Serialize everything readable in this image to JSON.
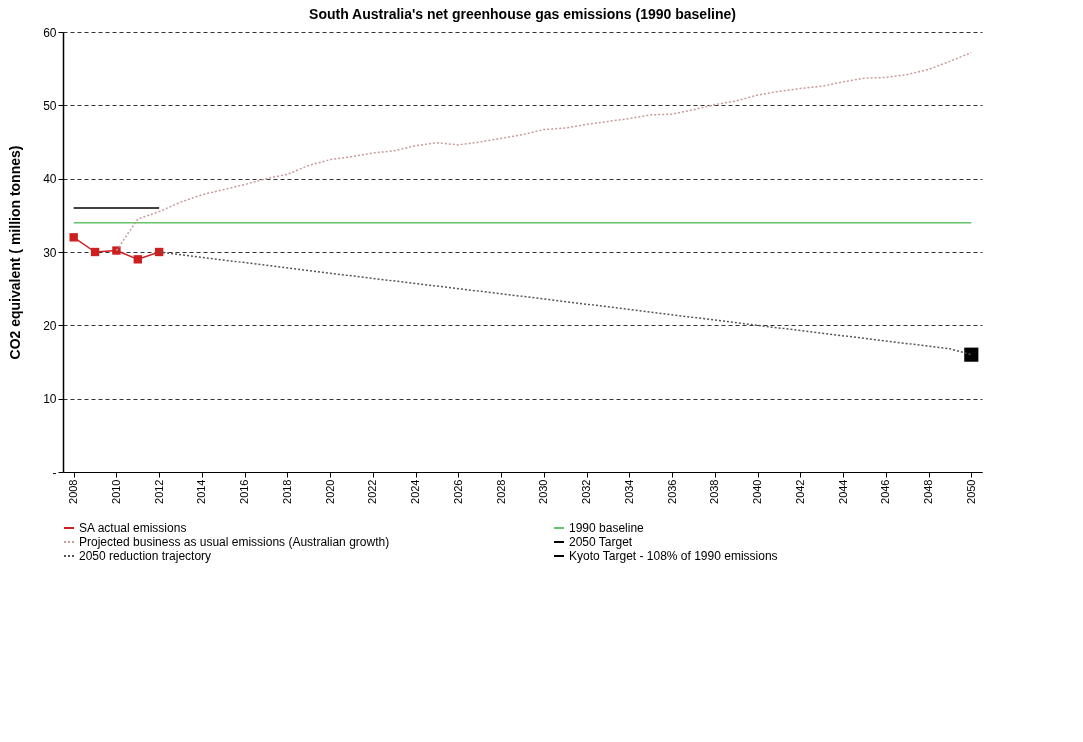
{
  "chart_data": {
    "type": "line",
    "title": "South Australia's net greenhouse gas emissions (1990 baseline)",
    "ylabel": "CO2 equivalent ( million tonnes)",
    "xlim": [
      2007.5,
      2050.5
    ],
    "xticks": [
      2008,
      2010,
      2012,
      2014,
      2016,
      2018,
      2020,
      2022,
      2024,
      2026,
      2028,
      2030,
      2032,
      2034,
      2036,
      2038,
      2040,
      2042,
      2044,
      2046,
      2048,
      2050
    ],
    "ylim": [
      0,
      60
    ],
    "yticks": [
      {
        "value": 0,
        "label": "-"
      },
      10,
      20,
      30,
      40,
      50,
      60
    ],
    "grid": "y",
    "legend": "bottom",
    "series": [
      {
        "name": "SA actual emissions",
        "marker": "square",
        "line_style": "solid",
        "color": "#cc1f1f",
        "x": [
          2008,
          2009,
          2010,
          2011,
          2012
        ],
        "values": [
          32,
          30,
          30.2,
          29,
          30
        ]
      },
      {
        "name": "1990 baseline",
        "line_style": "solid",
        "color": "#66c266",
        "x": [
          2008,
          2050
        ],
        "values": [
          34,
          34
        ]
      },
      {
        "name": "Projected business as usual emissions (Australian growth)",
        "line_style": "dotted",
        "color": "#c99a9a",
        "x": [
          2010,
          2011,
          2012,
          2013,
          2014,
          2015,
          2016,
          2017,
          2018,
          2019,
          2020,
          2021,
          2022,
          2023,
          2024,
          2025,
          2026,
          2027,
          2028,
          2029,
          2030,
          2031,
          2032,
          2033,
          2034,
          2035,
          2036,
          2037,
          2038,
          2039,
          2040,
          2041,
          2042,
          2043,
          2044,
          2045,
          2046,
          2047,
          2048,
          2049,
          2050
        ],
        "values": [
          30.2,
          34.5,
          35.5,
          36.8,
          37.8,
          38.5,
          39.2,
          40,
          40.6,
          41.8,
          42.6,
          43,
          43.5,
          43.8,
          44.5,
          44.9,
          44.6,
          45,
          45.5,
          46,
          46.7,
          46.9,
          47.4,
          47.8,
          48.2,
          48.7,
          48.8,
          49.4,
          50.1,
          50.6,
          51.4,
          51.9,
          52.3,
          52.6,
          53.2,
          53.7,
          53.8,
          54.2,
          54.9,
          56,
          57.2
        ]
      },
      {
        "name": "2050 Target",
        "type": "scatter",
        "marker": "square",
        "color": "#000000",
        "x": [
          2050
        ],
        "values": [
          16
        ]
      },
      {
        "name": "2050 reduction trajectory",
        "line_style": "dotted",
        "color": "#555555",
        "x": [
          2012,
          2020,
          2030,
          2040,
          2049,
          2050
        ],
        "values": [
          30,
          27.1,
          23.6,
          20,
          16.8,
          16
        ]
      },
      {
        "name": "Kyoto Target - 108% of 1990 emissions",
        "line_style": "solid",
        "color": "#000000",
        "x": [
          2008,
          2012
        ],
        "values": [
          36,
          36
        ]
      }
    ]
  }
}
